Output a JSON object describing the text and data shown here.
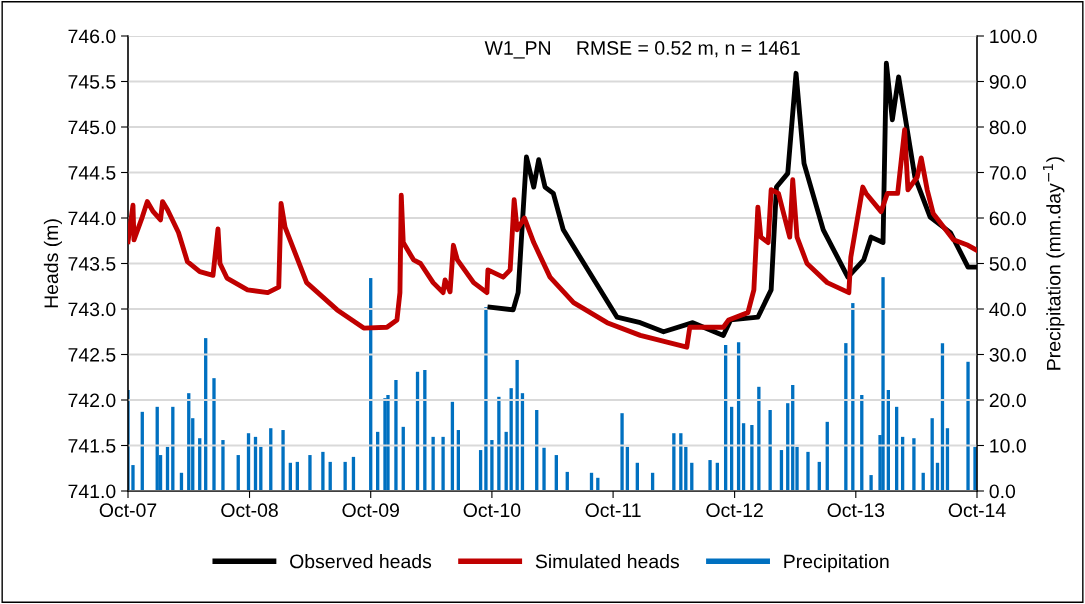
{
  "chart_data": {
    "type": "line",
    "ylabel": "Heads (m)",
    "y2label": "Precipitation (mm.day$^{−1}$)",
    "annotations": [
      "W1_PN",
      "RMSE = 0.52 m, n = 1461"
    ],
    "xlim": [
      "2007-10-01",
      "2014-10-01"
    ],
    "xticks": [
      {
        "value": "2007-10-01",
        "label": "Oct-07"
      },
      {
        "value": "2008-10-01",
        "label": "Oct-08"
      },
      {
        "value": "2009-10-01",
        "label": "Oct-09"
      },
      {
        "value": "2010-10-01",
        "label": "Oct-10"
      },
      {
        "value": "2011-10-01",
        "label": "Oct-11"
      },
      {
        "value": "2012-10-01",
        "label": "Oct-12"
      },
      {
        "value": "2013-10-01",
        "label": "Oct-13"
      },
      {
        "value": "2014-10-01",
        "label": "Oct-14"
      }
    ],
    "ylim": [
      741.0,
      746.0
    ],
    "yticks": [
      {
        "value": 741,
        "label": "741.0"
      },
      741.5,
      {
        "value": 742,
        "label": "742.0"
      },
      742.5,
      {
        "value": 743,
        "label": "743.0"
      },
      743.5,
      {
        "value": 744,
        "label": "744.0"
      },
      744.5,
      {
        "value": 745,
        "label": "745.0"
      },
      745.5,
      {
        "value": 746,
        "label": "746.0"
      }
    ],
    "y2lim": [
      0.0,
      100.0
    ],
    "y2ticks": [
      {
        "value": 0,
        "label": "0.0"
      },
      {
        "value": 10,
        "label": "10.0"
      },
      {
        "value": 20,
        "label": "20.0"
      },
      {
        "value": 30,
        "label": "30.0"
      },
      {
        "value": 40,
        "label": "40.0"
      },
      {
        "value": 50,
        "label": "50.0"
      },
      {
        "value": 60,
        "label": "60.0"
      },
      {
        "value": 70,
        "label": "70.0"
      },
      {
        "value": 80,
        "label": "80.0"
      },
      {
        "value": 90,
        "label": "90.0"
      },
      {
        "value": 100,
        "label": "100.0"
      }
    ],
    "grid": "y",
    "legend": "bottom",
    "series": [
      {
        "name": "Precipitation",
        "type": "bar",
        "axis": "y2",
        "color": "#0070c0",
        "x": [
          "2007-10-01",
          "2007-10-16",
          "2007-11-13",
          "2007-12-28",
          "2008-01-07",
          "2008-01-28",
          "2008-02-13",
          "2008-03-10",
          "2008-04-01",
          "2008-04-13",
          "2008-05-04",
          "2008-05-22",
          "2008-06-16",
          "2008-07-13",
          "2008-08-28",
          "2008-09-28",
          "2008-10-19",
          "2008-11-04",
          "2008-12-04",
          "2009-01-10",
          "2009-02-01",
          "2009-02-22",
          "2009-04-01",
          "2009-05-10",
          "2009-06-01",
          "2009-07-16",
          "2009-08-10",
          "2009-10-01",
          "2009-10-22",
          "2009-11-13",
          "2009-11-22",
          "2009-12-16",
          "2010-01-07",
          "2010-02-19",
          "2010-03-13",
          "2010-04-07",
          "2010-05-07",
          "2010-06-04",
          "2010-06-22",
          "2010-08-28",
          "2010-09-13",
          "2010-10-01",
          "2010-10-22",
          "2010-11-13",
          "2010-11-28",
          "2010-12-16",
          "2011-01-01",
          "2011-02-13",
          "2011-03-07",
          "2011-04-13",
          "2011-05-16",
          "2011-07-28",
          "2011-08-16",
          "2011-10-28",
          "2011-11-13",
          "2011-12-13",
          "2012-01-28",
          "2012-04-01",
          "2012-04-22",
          "2012-05-07",
          "2012-05-25",
          "2012-07-19",
          "2012-08-10",
          "2012-09-04",
          "2012-09-22",
          "2012-10-13",
          "2012-10-28",
          "2012-11-22",
          "2012-12-13",
          "2013-01-16",
          "2013-02-19",
          "2013-03-10",
          "2013-03-25",
          "2013-04-07",
          "2013-05-10",
          "2013-06-13",
          "2013-07-07",
          "2013-09-01",
          "2013-09-22",
          "2013-10-19",
          "2013-11-16",
          "2013-12-13",
          "2013-12-22",
          "2014-01-07",
          "2014-02-01",
          "2014-02-19",
          "2014-03-25",
          "2014-04-22",
          "2014-05-19",
          "2014-06-04",
          "2014-06-19",
          "2014-07-04",
          "2014-09-04",
          "2014-09-25"
        ],
        "values": [
          22.2,
          5.7,
          17.4,
          18.5,
          7.9,
          9.7,
          18.5,
          4.0,
          21.5,
          16.0,
          11.6,
          33.6,
          24.8,
          11.2,
          7.9,
          12.7,
          11.9,
          9.7,
          13.8,
          13.4,
          6.2,
          6.4,
          7.9,
          8.6,
          6.4,
          6.4,
          7.5,
          46.8,
          13.0,
          20.4,
          21.1,
          24.4,
          14.1,
          26.2,
          26.6,
          11.9,
          11.9,
          19.6,
          13.4,
          9.0,
          40.4,
          11.2,
          20.7,
          13.0,
          22.6,
          28.8,
          21.5,
          17.8,
          9.5,
          7.9,
          4.2,
          4.0,
          2.9,
          17.1,
          9.7,
          6.2,
          4.0,
          12.7,
          12.7,
          9.7,
          6.2,
          6.8,
          6.2,
          32.1,
          18.5,
          32.7,
          14.9,
          14.5,
          22.9,
          17.8,
          9.0,
          19.3,
          23.3,
          9.7,
          8.6,
          6.4,
          15.2,
          32.5,
          41.3,
          21.1,
          3.5,
          12.3,
          47.0,
          22.2,
          18.5,
          11.9,
          11.6,
          4.0,
          16.0,
          6.2,
          32.5,
          13.8,
          28.4,
          9.7
        ]
      },
      {
        "name": "Observed heads",
        "color": "#000000",
        "x": [
          "2010-09-25",
          "2010-12-04",
          "2010-12-19",
          "2011-01-13",
          "2011-02-04",
          "2011-02-19",
          "2011-03-10",
          "2011-04-04",
          "2011-05-04",
          "2011-07-22",
          "2011-10-13",
          "2011-12-22",
          "2012-03-01",
          "2012-05-28",
          "2012-08-28",
          "2012-09-19",
          "2012-12-10",
          "2013-01-19",
          "2013-02-04",
          "2013-03-10",
          "2013-04-04",
          "2013-04-28",
          "2013-06-25",
          "2013-09-07",
          "2013-10-25",
          "2013-11-16",
          "2013-12-22",
          "2014-01-01",
          "2014-01-19",
          "2014-02-07",
          "2014-03-28",
          "2014-05-13",
          "2014-07-13",
          "2014-09-04",
          "2014-09-28"
        ],
        "values": [
          743.02,
          742.99,
          743.18,
          744.67,
          744.34,
          744.64,
          744.34,
          744.27,
          743.87,
          743.4,
          742.91,
          742.85,
          742.75,
          742.85,
          742.71,
          742.88,
          742.91,
          743.21,
          744.34,
          744.49,
          745.59,
          744.6,
          743.87,
          743.35,
          743.54,
          743.79,
          743.73,
          745.7,
          745.08,
          745.55,
          744.45,
          744.01,
          743.84,
          743.46,
          743.46
        ]
      },
      {
        "name": "Simulated heads",
        "color": "#c00000",
        "x": [
          "2007-10-01",
          "2007-10-16",
          "2007-10-19",
          "2007-11-13",
          "2007-11-28",
          "2007-12-16",
          "2008-01-07",
          "2008-01-13",
          "2008-01-28",
          "2008-03-01",
          "2008-03-28",
          "2008-05-04",
          "2008-06-13",
          "2008-06-28",
          "2008-07-04",
          "2008-07-25",
          "2008-09-25",
          "2008-11-25",
          "2008-12-28",
          "2009-01-04",
          "2009-01-16",
          "2009-03-22",
          "2009-06-22",
          "2009-09-10",
          "2009-11-19",
          "2009-12-19",
          "2009-12-28",
          "2010-01-01",
          "2010-01-07",
          "2010-02-07",
          "2010-02-28",
          "2010-04-07",
          "2010-05-07",
          "2010-05-13",
          "2010-05-28",
          "2010-06-07",
          "2010-06-19",
          "2010-08-07",
          "2010-09-16",
          "2010-09-19",
          "2010-11-04",
          "2010-11-25",
          "2010-12-07",
          "2010-12-16",
          "2011-01-07",
          "2011-02-04",
          "2011-03-25",
          "2011-06-04",
          "2011-09-13",
          "2011-12-22",
          "2012-05-10",
          "2012-05-19",
          "2012-08-28",
          "2012-09-13",
          "2012-11-10",
          "2012-11-28",
          "2012-12-10",
          "2012-12-19",
          "2013-01-10",
          "2013-01-19",
          "2013-02-10",
          "2013-03-16",
          "2013-03-25",
          "2013-04-07",
          "2013-05-07",
          "2013-07-07",
          "2013-09-10",
          "2013-09-16",
          "2013-10-22",
          "2013-11-01",
          "2013-12-16",
          "2014-01-04",
          "2014-02-04",
          "2014-02-25",
          "2014-03-07",
          "2014-04-04",
          "2014-04-16",
          "2014-05-04",
          "2014-05-22",
          "2014-07-22",
          "2014-09-04",
          "2014-09-28"
        ],
        "values": [
          743.74,
          744.14,
          743.76,
          744.01,
          744.18,
          744.07,
          743.98,
          744.18,
          744.09,
          743.84,
          743.52,
          743.41,
          743.37,
          743.88,
          743.5,
          743.34,
          743.21,
          743.18,
          743.24,
          744.16,
          743.9,
          743.29,
          742.99,
          742.79,
          742.8,
          742.88,
          743.18,
          744.25,
          743.73,
          743.54,
          743.5,
          743.29,
          743.18,
          743.32,
          743.19,
          743.7,
          743.54,
          743.29,
          743.18,
          743.43,
          743.35,
          743.43,
          744.2,
          743.87,
          744.0,
          743.73,
          743.35,
          743.07,
          742.85,
          742.71,
          742.58,
          742.8,
          742.8,
          742.88,
          742.96,
          743.21,
          744.12,
          743.79,
          743.73,
          744.31,
          744.27,
          743.79,
          744.42,
          743.79,
          743.5,
          743.29,
          743.18,
          743.57,
          744.34,
          744.27,
          744.07,
          744.27,
          744.27,
          744.97,
          744.31,
          744.45,
          744.66,
          744.31,
          744.05,
          743.76,
          743.7,
          743.65
        ]
      }
    ]
  }
}
